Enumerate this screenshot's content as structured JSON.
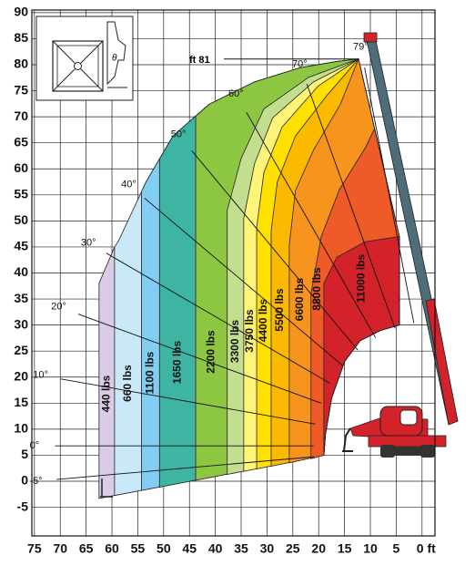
{
  "chart_data": {
    "type": "load-chart",
    "annotation": "ft 81",
    "inset_label": "θ",
    "xlim": [
      75.5,
      -2.5
    ],
    "ylim": [
      -10.5,
      90.5
    ],
    "xticks": [
      75,
      70,
      65,
      60,
      55,
      50,
      45,
      40,
      35,
      30,
      25,
      20,
      15,
      10,
      5,
      {
        "value": 0,
        "label": "0 ft"
      }
    ],
    "yticks": [
      90,
      85,
      80,
      75,
      70,
      65,
      60,
      55,
      50,
      45,
      40,
      35,
      30,
      25,
      20,
      15,
      10,
      5,
      0,
      -5
    ],
    "grid": true,
    "boom_angles": [
      -5,
      0,
      10,
      20,
      30,
      40,
      50,
      60,
      70,
      79
    ],
    "boom_angle_labels": [
      "-5°",
      "0°",
      "10°",
      "20°",
      "30°",
      "40°",
      "50°",
      "60°",
      "70°",
      "79°"
    ],
    "closure": [
      [
        4.4,
        47
      ],
      [
        4.4,
        30
      ],
      [
        8,
        29
      ],
      [
        12,
        27
      ],
      [
        15,
        23
      ],
      [
        17.5,
        16
      ],
      [
        18.7,
        9
      ],
      [
        19,
        5
      ]
    ],
    "zones": [
      {
        "name": "440 lbs",
        "color": "#dccbe6",
        "boundary": [
          [
            62.5,
            -3.3
          ],
          [
            62.5,
            38
          ],
          [
            59.5,
            45
          ],
          [
            12.3,
            81.1
          ]
        ]
      },
      {
        "name": "660 lbs",
        "color": "#c9e8f8",
        "boundary": [
          [
            59.5,
            -2.74
          ],
          [
            59.5,
            45
          ],
          [
            58.7,
            46.2
          ],
          [
            53.4,
            57.5
          ],
          [
            48.2,
            66.3
          ],
          [
            41.2,
            72.4
          ],
          [
            32.4,
            76.7
          ],
          [
            23.6,
            79.4
          ],
          [
            16.6,
            80.6
          ],
          [
            12.3,
            81.1
          ]
        ]
      },
      {
        "name": "1100 lbs",
        "color": "#82cdf1",
        "boundary": [
          [
            54.3,
            -1.78
          ],
          [
            54.3,
            55.6
          ],
          [
            53.4,
            57.5
          ],
          [
            48.2,
            66.3
          ],
          [
            41.2,
            72.4
          ],
          [
            32.4,
            76.7
          ],
          [
            23.6,
            79.4
          ],
          [
            16.6,
            80.6
          ],
          [
            12.3,
            81.1
          ]
        ]
      },
      {
        "name": "1650 lbs",
        "color": "#3db5a2",
        "boundary": [
          [
            50.8,
            -1.13
          ],
          [
            50.8,
            61.9
          ],
          [
            48.2,
            66.3
          ],
          [
            41.2,
            72.4
          ],
          [
            32.4,
            76.7
          ],
          [
            23.6,
            79.4
          ],
          [
            16.6,
            80.6
          ],
          [
            12.3,
            81.1
          ]
        ]
      },
      {
        "name": "2200 lbs",
        "color": "#8dc641",
        "boundary": [
          [
            43.8,
            0.17
          ],
          [
            43.8,
            70.1
          ],
          [
            41.2,
            72.4
          ],
          [
            32.4,
            76.7
          ],
          [
            23.6,
            79.4
          ],
          [
            16.6,
            80.6
          ],
          [
            12.3,
            81.1
          ]
        ]
      },
      {
        "name": "3300 lbs",
        "color": "#c2de8e",
        "boundary": [
          [
            37.7,
            1.31
          ],
          [
            37.7,
            52
          ],
          [
            35,
            62
          ],
          [
            30.6,
            71.5
          ],
          [
            21.9,
            77.6
          ],
          [
            12.3,
            81.1
          ]
        ]
      },
      {
        "name": "3750 lbs",
        "color": "#fff478",
        "boundary": [
          [
            34.5,
            1.9
          ],
          [
            34.5,
            50.5
          ],
          [
            32.4,
            61
          ],
          [
            28.9,
            69.8
          ],
          [
            21,
            76.7
          ],
          [
            12.3,
            81.1
          ]
        ]
      },
      {
        "name": "4400 lbs",
        "color": "#ffe000",
        "boundary": [
          [
            32,
            2.36
          ],
          [
            32,
            48.8
          ],
          [
            30.6,
            59.3
          ],
          [
            27.1,
            68
          ],
          [
            20.1,
            75.9
          ],
          [
            12.3,
            81.1
          ]
        ]
      },
      {
        "name": "5500 lbs",
        "color": "#fbb900",
        "boundary": [
          [
            29.2,
            2.88
          ],
          [
            29.2,
            48
          ],
          [
            28,
            57.5
          ],
          [
            24.5,
            66.3
          ],
          [
            18.4,
            74.1
          ],
          [
            12.3,
            81.1
          ]
        ]
      },
      {
        "name": "6600 lbs",
        "color": "#f7941d",
        "boundary": [
          [
            25.7,
            3.53
          ],
          [
            25.7,
            45.3
          ],
          [
            24.5,
            55.8
          ],
          [
            21,
            63.6
          ],
          [
            15.8,
            72.4
          ],
          [
            12.3,
            81.1
          ]
        ]
      },
      {
        "name": "8800 lbs",
        "color": "#ee5a28",
        "boundary": [
          [
            21.5,
            4.31
          ],
          [
            21.5,
            36
          ],
          [
            19.5,
            47
          ],
          [
            16,
            56
          ],
          [
            11,
            64
          ],
          [
            9.2,
            67.7
          ]
        ]
      },
      {
        "name": "11000 lbs",
        "color": "#d3222a",
        "boundary": [
          [
            19,
            5
          ],
          [
            19,
            38
          ],
          [
            16.5,
            43
          ],
          [
            11,
            46
          ],
          [
            4.4,
            47
          ]
        ]
      }
    ]
  }
}
